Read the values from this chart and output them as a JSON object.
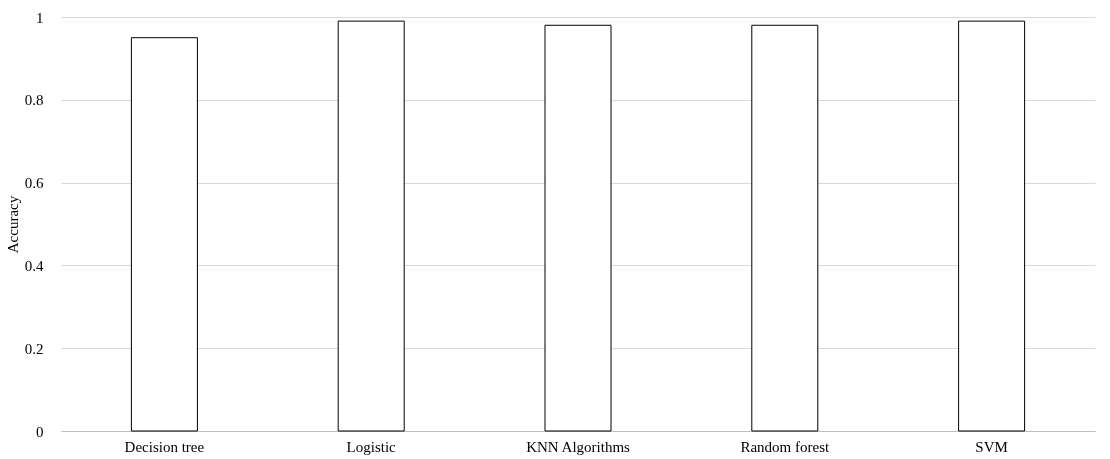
{
  "chart_data": {
    "type": "bar",
    "ylabel": "Accuracy",
    "categories": [
      "Decision  tree",
      "Logistic",
      "KNN Algorithms",
      "Random forest",
      "SVM"
    ],
    "values": [
      0.95,
      0.99,
      0.98,
      0.98,
      0.99
    ],
    "color": "#ffffff",
    "ylim": [
      0,
      1
    ],
    "yticks": [
      {
        "value": 0,
        "label": "0"
      },
      0.2,
      0.4,
      0.6,
      0.8,
      {
        "value": 1,
        "label": "1"
      }
    ],
    "grid": "y"
  }
}
